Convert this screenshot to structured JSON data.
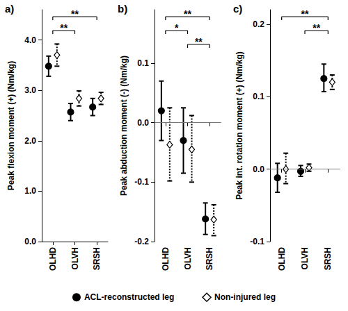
{
  "chart_data": [
    {
      "type": "scatter",
      "title": "a)",
      "y_label": "Peak flexion moment (+) (Nm/kg)",
      "categories": [
        "OLHD",
        "OLVH",
        "SRSH"
      ],
      "ylim": [
        0,
        4.6
      ],
      "yticks": [
        {
          "value": 0,
          "label": "0.0"
        },
        {
          "value": 1,
          "label": "1.0"
        },
        {
          "value": 2,
          "label": "2.0"
        },
        {
          "value": 3,
          "label": "3.0"
        },
        {
          "value": 4,
          "label": "4.0"
        }
      ],
      "grid": false,
      "legend": "bottom",
      "series": [
        {
          "name": "ACL-reconstructed leg",
          "color": "#000000",
          "marker": "circle",
          "line_style": "solid",
          "values": [
            3.48,
            2.57,
            2.67
          ],
          "error_low": [
            3.28,
            2.4,
            2.5
          ],
          "error_high": [
            3.68,
            2.74,
            2.84
          ]
        },
        {
          "name": "Non-injured leg",
          "color": "#000000",
          "marker": "hollow_diamond",
          "line_style": "dotted",
          "values": [
            3.7,
            2.84,
            2.84
          ],
          "error_low": [
            3.48,
            2.69,
            2.72
          ],
          "error_high": [
            3.92,
            2.99,
            2.96
          ]
        }
      ],
      "annotations": [
        {
          "from": "OLHD",
          "to": "SRSH",
          "label": "**"
        },
        {
          "from": "OLHD",
          "to": "OLVH",
          "label": "**"
        }
      ]
    },
    {
      "type": "scatter",
      "title": "b)",
      "y_label": "Peak abduction moment (-) (Nm/kg)",
      "categories": [
        "OLHD",
        "OLVH",
        "SRSH"
      ],
      "ylim": [
        -0.2,
        0.19
      ],
      "yticks": [
        -0.2,
        -0.1,
        {
          "value": 0,
          "label": "0.0"
        },
        0.1
      ],
      "grid": false,
      "legend": "bottom",
      "series": [
        {
          "name": "ACL-reconstructed leg",
          "color": "#000000",
          "marker": "circle",
          "line_style": "solid",
          "values": [
            0.02,
            -0.03,
            -0.162
          ],
          "error_low": [
            -0.03,
            -0.085,
            -0.188
          ],
          "error_high": [
            0.07,
            0.025,
            -0.135
          ]
        },
        {
          "name": "Non-injured leg",
          "color": "#000000",
          "marker": "hollow_diamond",
          "line_style": "dotted",
          "values": [
            -0.037,
            -0.045,
            -0.163
          ],
          "error_low": [
            -0.098,
            -0.1,
            -0.19
          ],
          "error_high": [
            0.025,
            0.012,
            -0.138
          ]
        }
      ],
      "annotations": [
        {
          "from": "OLHD",
          "to": "SRSH",
          "label": "**"
        },
        {
          "from": "OLHD",
          "to": "OLVH",
          "label": "*"
        },
        {
          "from": "OLVH",
          "to": "SRSH",
          "label": "**"
        }
      ]
    },
    {
      "type": "scatter",
      "title": "c)",
      "y_label": "Peak int. rotation moment (+) (Nm/kg)",
      "categories": [
        "OLHD",
        "OLVH",
        "SRSH"
      ],
      "ylim": [
        -0.1,
        0.22
      ],
      "yticks": [
        -0.1,
        {
          "value": 0,
          "label": "0.0"
        },
        0.1,
        0.2
      ],
      "grid": false,
      "legend": "bottom",
      "series": [
        {
          "name": "ACL-reconstructed leg",
          "color": "#000000",
          "marker": "circle",
          "line_style": "solid",
          "values": [
            -0.012,
            -0.003,
            0.125
          ],
          "error_low": [
            -0.032,
            -0.01,
            0.107
          ],
          "error_high": [
            0.008,
            0.005,
            0.145
          ]
        },
        {
          "name": "Non-injured leg",
          "color": "#000000",
          "marker": "hollow_diamond",
          "line_style": "dotted",
          "values": [
            0.0,
            0.002,
            0.12
          ],
          "error_low": [
            -0.02,
            -0.003,
            0.11
          ],
          "error_high": [
            0.022,
            0.007,
            0.13
          ]
        }
      ],
      "annotations": [
        {
          "from": "OLHD",
          "to": "SRSH",
          "label": "**"
        },
        {
          "from": "OLVH",
          "to": "SRSH",
          "label": "**"
        }
      ]
    }
  ]
}
